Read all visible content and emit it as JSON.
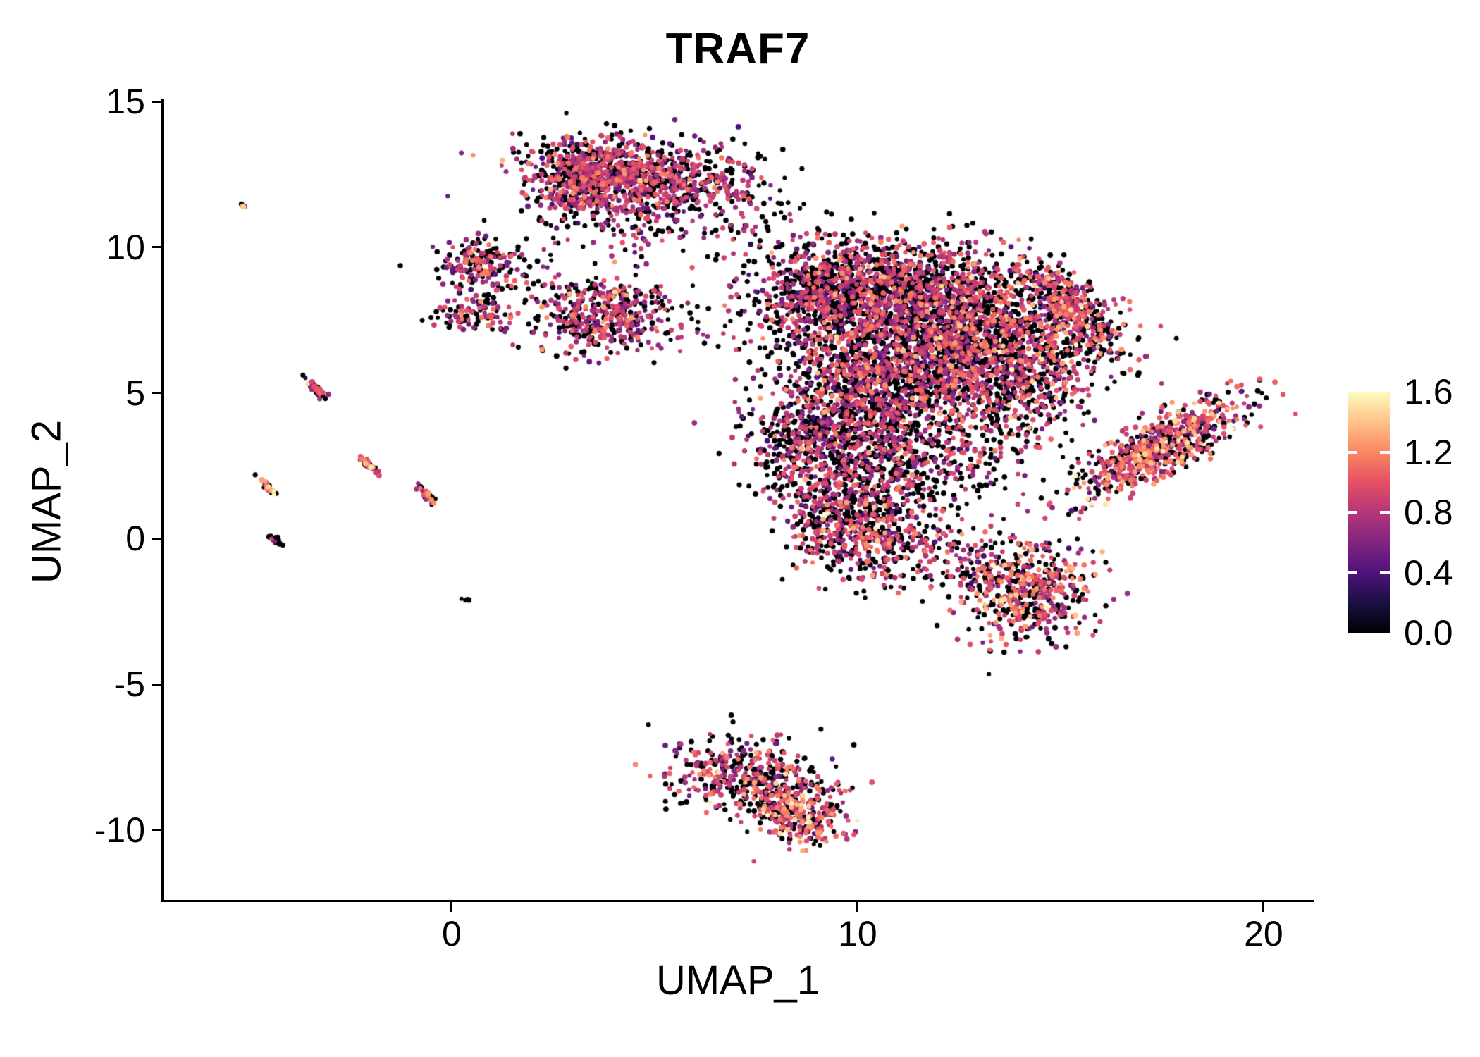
{
  "title": "TRAF7",
  "chart_data": {
    "type": "scatter",
    "title": "TRAF7",
    "subtitle": "",
    "xlabel": "UMAP_1",
    "ylabel": "UMAP_2",
    "xlim": [
      -7.1,
      21.2
    ],
    "ylim": [
      -12.4,
      15.1
    ],
    "x_ticks": [
      0,
      10,
      20
    ],
    "y_ticks": [
      15,
      10,
      5,
      0,
      -5,
      -10
    ],
    "grid": false,
    "background": "#ffffff",
    "axis_color": "#000000",
    "point_color_meaning": "TRAF7 expression level per cell",
    "legend": {
      "position": "right",
      "range": [
        0.0,
        1.6
      ],
      "tick_labels": [
        "1.6",
        "1.2",
        "0.8",
        "0.4",
        "0.0"
      ],
      "tick_values": [
        1.6,
        1.2,
        0.8,
        0.4,
        0.0
      ]
    },
    "colormap": {
      "name": "magma",
      "stops": [
        "#000004",
        "#1c1044",
        "#4f127b",
        "#812581",
        "#b5367a",
        "#e55064",
        "#fb8761",
        "#fec287",
        "#fcfdbf"
      ]
    },
    "clusters": [
      {
        "name": "outlier-top-left",
        "cx": -5.1,
        "cy": 11.4,
        "sx": 0.07,
        "sy": 0.06,
        "rot": 0,
        "n": 5,
        "p0": 0.3,
        "vmean": 1.0,
        "vsd": 0.3
      },
      {
        "name": "top-blob-main",
        "cx": 4.2,
        "cy": 12.5,
        "sx": 1.05,
        "sy": 0.62,
        "rot": -8,
        "n": 820,
        "p0": 0.38,
        "vmean": 0.8,
        "vsd": 0.22
      },
      {
        "name": "top-blob-left",
        "cx": 3.0,
        "cy": 12.1,
        "sx": 0.55,
        "sy": 0.5,
        "rot": 0,
        "n": 200,
        "p0": 0.42,
        "vmean": 0.8,
        "vsd": 0.2
      },
      {
        "name": "top-blob-right",
        "cx": 6.2,
        "cy": 12.3,
        "sx": 0.75,
        "sy": 0.6,
        "rot": 0,
        "n": 160,
        "p0": 0.5,
        "vmean": 0.78,
        "vsd": 0.2
      },
      {
        "name": "top-sparse-below",
        "cx": 4.4,
        "cy": 10.9,
        "sx": 1.4,
        "sy": 0.6,
        "rot": 0,
        "n": 120,
        "p0": 0.55,
        "vmean": 0.75,
        "vsd": 0.2
      },
      {
        "name": "bridge-top-main",
        "cx": 7.3,
        "cy": 11.4,
        "sx": 0.9,
        "sy": 0.9,
        "rot": 0,
        "n": 70,
        "p0": 0.55,
        "vmean": 0.78,
        "vsd": 0.2
      },
      {
        "name": "small-left-upper",
        "cx": 0.7,
        "cy": 9.4,
        "sx": 0.5,
        "sy": 0.45,
        "rot": 0,
        "n": 170,
        "p0": 0.45,
        "vmean": 0.8,
        "vsd": 0.22
      },
      {
        "name": "small-left-lower",
        "cx": 0.6,
        "cy": 7.75,
        "sx": 0.45,
        "sy": 0.38,
        "rot": 0,
        "n": 100,
        "p0": 0.45,
        "vmean": 0.8,
        "vsd": 0.2
      },
      {
        "name": "mid-left-cluster",
        "cx": 3.7,
        "cy": 7.6,
        "sx": 0.78,
        "sy": 0.62,
        "rot": 10,
        "n": 400,
        "p0": 0.42,
        "vmean": 0.82,
        "vsd": 0.22
      },
      {
        "name": "sparse-mid-left",
        "cx": 2.1,
        "cy": 8.6,
        "sx": 0.9,
        "sy": 0.7,
        "rot": 0,
        "n": 50,
        "p0": 0.55,
        "vmean": 0.75,
        "vsd": 0.2
      },
      {
        "name": "sparse-c-d",
        "cx": 6.0,
        "cy": 7.3,
        "sx": 0.65,
        "sy": 0.55,
        "rot": 0,
        "n": 35,
        "p0": 0.6,
        "vmean": 0.78,
        "vsd": 0.2
      },
      {
        "name": "main-top-left",
        "cx": 9.3,
        "cy": 8.4,
        "sx": 1.0,
        "sy": 1.0,
        "rot": 0,
        "n": 780,
        "p0": 0.55,
        "vmean": 0.8,
        "vsd": 0.22
      },
      {
        "name": "main-top-mid",
        "cx": 11.4,
        "cy": 8.6,
        "sx": 1.2,
        "sy": 0.85,
        "rot": 0,
        "n": 880,
        "p0": 0.55,
        "vmean": 0.82,
        "vsd": 0.22
      },
      {
        "name": "main-core",
        "cx": 12.7,
        "cy": 6.4,
        "sx": 1.4,
        "sy": 1.2,
        "rot": 0,
        "n": 1550,
        "p0": 0.5,
        "vmean": 0.85,
        "vsd": 0.24
      },
      {
        "name": "main-mid-left",
        "cx": 10.2,
        "cy": 5.2,
        "sx": 1.1,
        "sy": 1.2,
        "rot": 0,
        "n": 880,
        "p0": 0.55,
        "vmean": 0.8,
        "vsd": 0.22
      },
      {
        "name": "main-lower-left",
        "cx": 8.9,
        "cy": 3.3,
        "sx": 0.85,
        "sy": 0.95,
        "rot": 0,
        "n": 460,
        "p0": 0.5,
        "vmean": 0.82,
        "vsd": 0.22
      },
      {
        "name": "main-bottom",
        "cx": 11.2,
        "cy": 2.7,
        "sx": 1.05,
        "sy": 0.8,
        "rot": 0,
        "n": 430,
        "p0": 0.55,
        "vmean": 0.8,
        "vsd": 0.22
      },
      {
        "name": "main-right-sparse",
        "cx": 14.2,
        "cy": 5.0,
        "sx": 0.8,
        "sy": 1.3,
        "rot": 0,
        "n": 270,
        "p0": 0.5,
        "vmean": 0.85,
        "vsd": 0.25
      },
      {
        "name": "right-arc",
        "cx": 15.2,
        "cy": 8.0,
        "sx": 1.0,
        "sy": 0.32,
        "rot": -55,
        "n": 300,
        "p0": 0.4,
        "vmean": 0.9,
        "vsd": 0.25
      },
      {
        "name": "right-arc-fill",
        "cx": 15.2,
        "cy": 7.4,
        "sx": 0.7,
        "sy": 0.8,
        "rot": 0,
        "n": 130,
        "p0": 0.5,
        "vmean": 0.85,
        "vsd": 0.22
      },
      {
        "name": "right-band",
        "cx": 17.4,
        "cy": 3.1,
        "sx": 1.3,
        "sy": 0.42,
        "rot": 38,
        "n": 680,
        "p0": 0.35,
        "vmean": 0.95,
        "vsd": 0.27
      },
      {
        "name": "lower-middle",
        "cx": 10.3,
        "cy": 0.3,
        "sx": 0.8,
        "sy": 1.0,
        "rot": 0,
        "n": 500,
        "p0": 0.45,
        "vmean": 0.85,
        "vsd": 0.24
      },
      {
        "name": "lower-middle-left",
        "cx": 9.2,
        "cy": 0.9,
        "sx": 0.5,
        "sy": 0.7,
        "rot": 0,
        "n": 130,
        "p0": 0.5,
        "vmean": 0.85,
        "vsd": 0.22
      },
      {
        "name": "bridge-lower",
        "cx": 12.4,
        "cy": -0.6,
        "sx": 0.9,
        "sy": 0.55,
        "rot": -15,
        "n": 110,
        "p0": 0.5,
        "vmean": 0.85,
        "vsd": 0.22
      },
      {
        "name": "lower-right",
        "cx": 14.2,
        "cy": -1.8,
        "sx": 0.78,
        "sy": 0.85,
        "rot": -30,
        "n": 480,
        "p0": 0.38,
        "vmean": 0.92,
        "vsd": 0.26
      },
      {
        "name": "bottom-main",
        "cx": 7.3,
        "cy": -8.1,
        "sx": 0.95,
        "sy": 0.62,
        "rot": -15,
        "n": 430,
        "p0": 0.45,
        "vmean": 0.85,
        "vsd": 0.25
      },
      {
        "name": "bottom-tip",
        "cx": 8.6,
        "cy": -9.5,
        "sx": 0.55,
        "sy": 0.45,
        "rot": -35,
        "n": 260,
        "p0": 0.3,
        "vmean": 1.0,
        "vsd": 0.25
      },
      {
        "name": "streak-a",
        "cx": -3.35,
        "cy": 5.15,
        "sx": 0.18,
        "sy": 0.045,
        "rot": -55,
        "n": 45,
        "p0": 0.5,
        "vmean": 0.9,
        "vsd": 0.3
      },
      {
        "name": "streak-b",
        "cx": -2.05,
        "cy": 2.55,
        "sx": 0.18,
        "sy": 0.045,
        "rot": -55,
        "n": 40,
        "p0": 0.5,
        "vmean": 0.9,
        "vsd": 0.3
      },
      {
        "name": "streak-c",
        "cx": -0.6,
        "cy": 1.5,
        "sx": 0.2,
        "sy": 0.045,
        "rot": -55,
        "n": 45,
        "p0": 0.5,
        "vmean": 0.85,
        "vsd": 0.3
      },
      {
        "name": "streak-d",
        "cx": -4.55,
        "cy": 1.8,
        "sx": 0.15,
        "sy": 0.045,
        "rot": -55,
        "n": 30,
        "p0": 0.45,
        "vmean": 1.0,
        "vsd": 0.3
      },
      {
        "name": "streak-e",
        "cx": -4.3,
        "cy": -0.1,
        "sx": 0.14,
        "sy": 0.04,
        "rot": -55,
        "n": 24,
        "p0": 0.8,
        "vmean": 0.7,
        "vsd": 0.2
      },
      {
        "name": "dot-below-left",
        "cx": 0.35,
        "cy": -2.1,
        "sx": 0.06,
        "sy": 0.05,
        "rot": 0,
        "n": 5,
        "p0": 0.85,
        "vmean": 0.6,
        "vsd": 0.2
      }
    ]
  }
}
